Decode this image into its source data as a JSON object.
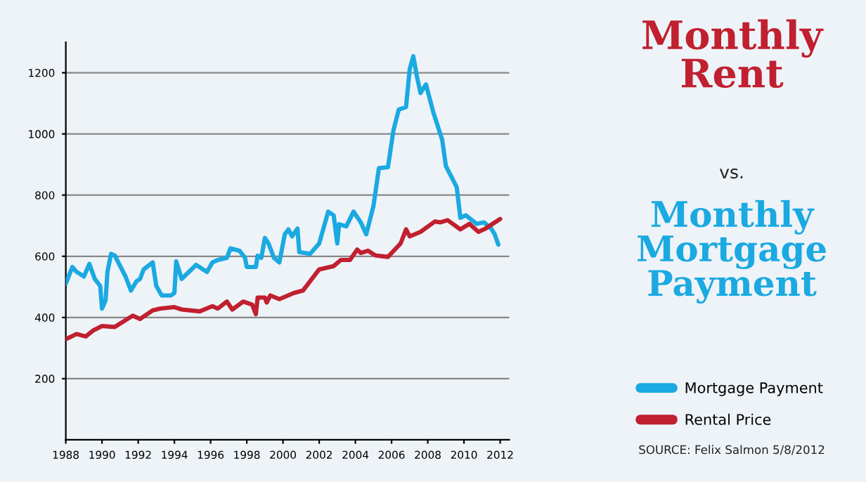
{
  "chart_data": {
    "type": "line",
    "title": "Monthly\nRent",
    "subtitle": "vs.",
    "annotations": [
      "Monthly\nMortgage\nPayment",
      "SOURCE: Felix Salmon 5/8/2012"
    ],
    "series": [
      {
        "name": "Mortgage Payment",
        "color": "#1ba9e1",
        "x": [
          1988.0,
          1988.36,
          1988.6,
          1989.0,
          1989.3,
          1989.6,
          1989.9,
          1990.0,
          1990.2,
          1990.3,
          1990.5,
          1990.7,
          1991.3,
          1991.6,
          1991.9,
          1992.1,
          1992.3,
          1992.8,
          1993.0,
          1993.3,
          1993.8,
          1994.0,
          1994.1,
          1994.4,
          1995.2,
          1995.8,
          1996.1,
          1996.4,
          1996.9,
          1997.1,
          1997.6,
          1997.9,
          1998.0,
          1998.5,
          1998.6,
          1998.8,
          1999.0,
          1999.2,
          1999.5,
          1999.8,
          2000.1,
          2000.3,
          2000.5,
          2000.8,
          2000.9,
          2001.5,
          2002.0,
          2002.5,
          2002.8,
          2003.0,
          2003.1,
          2003.5,
          2003.9,
          2004.3,
          2004.6,
          2005.0,
          2005.3,
          2005.8,
          2006.1,
          2006.4,
          2006.8,
          2007.0,
          2007.2,
          2007.4,
          2007.6,
          2007.9,
          2008.3,
          2008.8,
          2009.0,
          2009.6,
          2009.8,
          2010.1,
          2010.7,
          2011.1,
          2011.5,
          2011.7,
          2011.9
        ],
        "values": [
          511,
          565,
          549,
          534,
          575,
          526,
          503,
          429,
          457,
          549,
          608,
          603,
          534,
          488,
          518,
          526,
          557,
          580,
          503,
          472,
          472,
          480,
          583,
          526,
          572,
          549,
          580,
          588,
          595,
          626,
          618,
          595,
          565,
          565,
          602,
          595,
          660,
          642,
          595,
          580,
          672,
          688,
          665,
          691,
          614,
          608,
          642,
          746,
          734,
          642,
          705,
          698,
          746,
          711,
          672,
          765,
          888,
          891,
          1011,
          1080,
          1088,
          1211,
          1254,
          1188,
          1134,
          1162,
          1072,
          980,
          895,
          826,
          726,
          734,
          706,
          711,
          691,
          672,
          638
        ]
      },
      {
        "name": "Rental Price",
        "color": "#c0202f",
        "x": [
          1988.0,
          1988.6,
          1989.1,
          1989.5,
          1990.0,
          1990.7,
          1991.7,
          1992.1,
          1992.8,
          1993.2,
          1994.0,
          1994.4,
          1995.4,
          1996.1,
          1996.4,
          1996.9,
          1997.2,
          1997.8,
          1998.3,
          1998.5,
          1998.6,
          1999.0,
          1999.1,
          1999.3,
          1999.8,
          2000.6,
          2001.1,
          2002.0,
          2002.8,
          2003.2,
          2003.7,
          2004.1,
          2004.3,
          2004.7,
          2005.1,
          2005.8,
          2006.5,
          2006.8,
          2007.0,
          2007.6,
          2008.4,
          2008.7,
          2009.1,
          2009.8,
          2010.3,
          2010.8,
          2011.2,
          2012.0
        ],
        "values": [
          329,
          346,
          338,
          357,
          372,
          369,
          406,
          395,
          423,
          429,
          434,
          426,
          420,
          437,
          429,
          452,
          426,
          452,
          442,
          411,
          465,
          465,
          449,
          472,
          460,
          480,
          488,
          557,
          568,
          588,
          588,
          622,
          611,
          618,
          603,
          598,
          642,
          688,
          665,
          680,
          714,
          711,
          718,
          688,
          706,
          680,
          691,
          722
        ]
      }
    ],
    "xlim": [
      1988,
      2012.5
    ],
    "xticks": [
      1988,
      1990,
      1992,
      1994,
      1996,
      1998,
      2000,
      2002,
      2004,
      2006,
      2008,
      2010,
      2012
    ],
    "ylim": [
      0,
      1300
    ],
    "yticks": [
      200,
      400,
      600,
      800,
      1000,
      1200
    ],
    "grid": "y",
    "legend": "right",
    "marker": "none",
    "line_style": "solid"
  }
}
